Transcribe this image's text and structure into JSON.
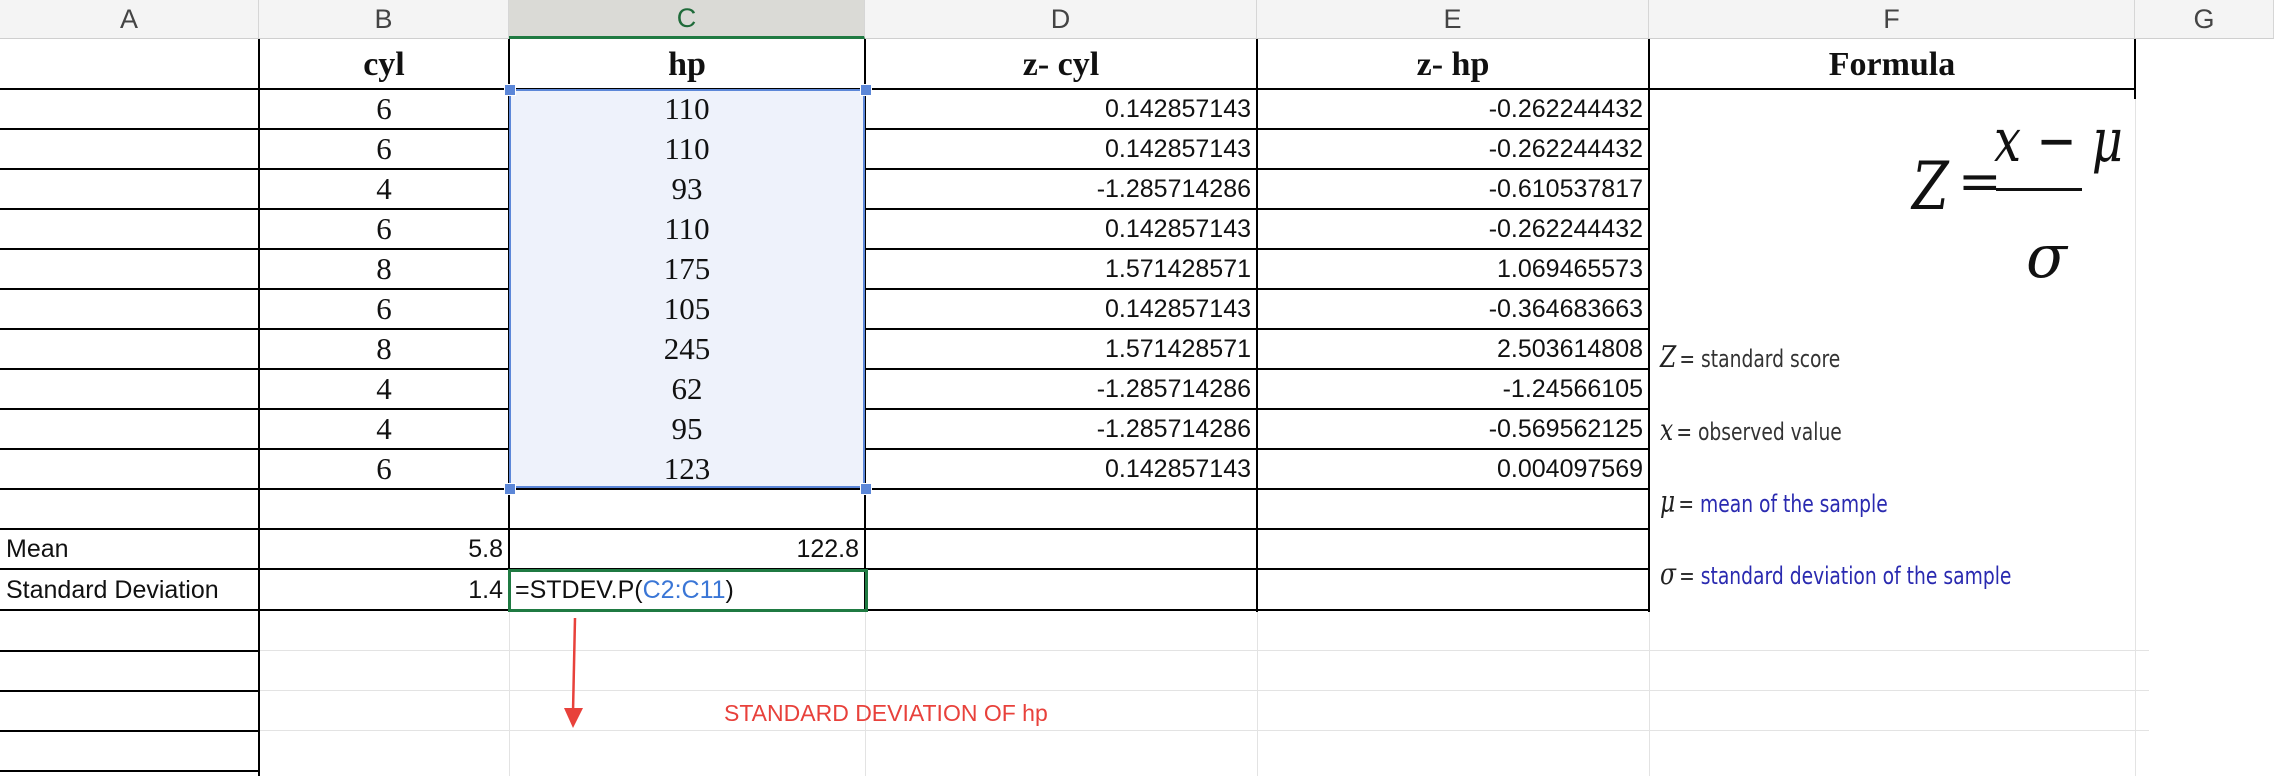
{
  "columns": [
    "A",
    "B",
    "C",
    "D",
    "E",
    "F",
    "G"
  ],
  "headers": {
    "cyl": "cyl",
    "hp": "hp",
    "zcyl": "z- cyl",
    "zhp": "z- hp",
    "formula": "Formula"
  },
  "rows": [
    {
      "cyl": "6",
      "hp": "110",
      "zcyl": "0.142857143",
      "zhp": "-0.262244432"
    },
    {
      "cyl": "6",
      "hp": "110",
      "zcyl": "0.142857143",
      "zhp": "-0.262244432"
    },
    {
      "cyl": "4",
      "hp": "93",
      "zcyl": "-1.285714286",
      "zhp": "-0.610537817"
    },
    {
      "cyl": "6",
      "hp": "110",
      "zcyl": "0.142857143",
      "zhp": "-0.262244432"
    },
    {
      "cyl": "8",
      "hp": "175",
      "zcyl": "1.571428571",
      "zhp": "1.069465573"
    },
    {
      "cyl": "6",
      "hp": "105",
      "zcyl": "0.142857143",
      "zhp": "-0.364683663"
    },
    {
      "cyl": "8",
      "hp": "245",
      "zcyl": "1.571428571",
      "zhp": "2.503614808"
    },
    {
      "cyl": "4",
      "hp": "62",
      "zcyl": "-1.285714286",
      "zhp": "-1.24566105"
    },
    {
      "cyl": "4",
      "hp": "95",
      "zcyl": "-1.285714286",
      "zhp": "-0.569562125"
    },
    {
      "cyl": "6",
      "hp": "123",
      "zcyl": "0.142857143",
      "zhp": "0.004097569"
    }
  ],
  "summary": {
    "mean_label": "Mean",
    "mean_cyl": "5.8",
    "mean_hp": "122.8",
    "sd_label": "Standard Deviation",
    "sd_cyl": "1.4",
    "sd_formula_prefix": "=STDEV.P(",
    "sd_formula_ref": "C2:C11",
    "sd_formula_suffix": ")"
  },
  "equation": {
    "lhs": "Z",
    "eq": "=",
    "numerator": "x − μ",
    "denominator": "σ"
  },
  "legend": {
    "z_sym": "Z",
    "z_text": "= standard score",
    "x_sym": "x",
    "x_text": "= observed value",
    "mu_sym": "μ",
    "mu_eq": "= ",
    "mu_text": "mean of the sample",
    "sigma_sym": "σ",
    "sigma_eq": "= ",
    "sigma_text": "standard deviation of the sample"
  },
  "annotation": "STANDARD DEVIATION OF hp",
  "colors": {
    "selection": "#5c87d8",
    "active_cell": "#1f7a42",
    "annotation": "#e8413b",
    "ref": "#3a76d6"
  }
}
